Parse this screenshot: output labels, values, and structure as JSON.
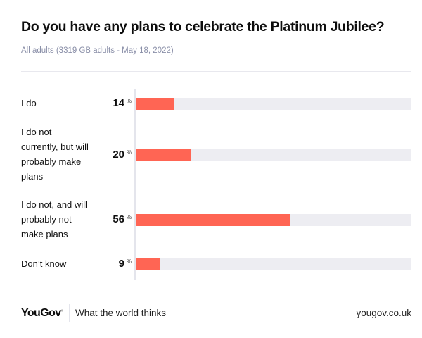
{
  "chart_data": {
    "type": "bar",
    "orientation": "horizontal",
    "title": "Do you have any plans to celebrate the Platinum Jubilee?",
    "subtitle": "All adults (3319 GB adults - May 18, 2022)",
    "categories": [
      "I do",
      "I do not currently, but will probably make plans",
      "I do not, and will probably not make plans",
      "Don’t know"
    ],
    "label_lines": [
      [
        "I do"
      ],
      [
        "I do not",
        "currently, but will",
        "probably make",
        "plans"
      ],
      [
        "I do not, and will",
        "probably not",
        "make plans"
      ],
      [
        "Don’t know"
      ]
    ],
    "values": [
      14,
      20,
      56,
      9
    ],
    "unit": "%",
    "xlim": [
      0,
      100
    ],
    "bar_color": "#ff6554",
    "track_color": "#ededf2"
  },
  "footer": {
    "brand": "YouGov",
    "tagline": "What the world thinks",
    "site": "yougov.co.uk"
  }
}
